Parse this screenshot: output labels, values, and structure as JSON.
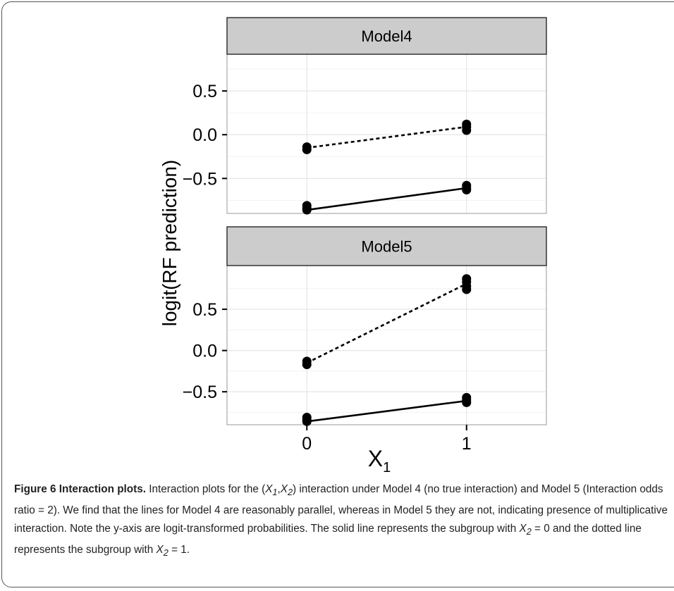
{
  "chart_data": {
    "type": "line",
    "ylabel": "logit(RF prediction)",
    "xlabel": "X",
    "xlabel_subscript": "1",
    "x_ticks": [
      "0",
      "1"
    ],
    "y_ticks": [
      "0.5",
      "0.0",
      "−0.5"
    ],
    "y_tick_values": [
      0.5,
      0.0,
      -0.5
    ],
    "xlim": [
      -0.5,
      1.5
    ],
    "grid": true,
    "panels": [
      {
        "title": "Model4",
        "ylim": [
          -0.9,
          0.92
        ],
        "series": [
          {
            "style": "dotted",
            "x": [
              0,
              1
            ],
            "y": [
              -0.15,
              0.09
            ],
            "points": [
              [
                0,
                -0.14
              ],
              [
                0,
                -0.17
              ],
              [
                1,
                0.12
              ],
              [
                1,
                0.09
              ],
              [
                1,
                0.05
              ]
            ]
          },
          {
            "style": "solid",
            "x": [
              0,
              1
            ],
            "y": [
              -0.86,
              -0.61
            ],
            "points": [
              [
                0,
                -0.81
              ],
              [
                0,
                -0.84
              ],
              [
                0,
                -0.86
              ],
              [
                1,
                -0.58
              ],
              [
                1,
                -0.61
              ],
              [
                1,
                -0.63
              ]
            ]
          }
        ]
      },
      {
        "title": "Model5",
        "ylim": [
          -0.9,
          1.03
        ],
        "series": [
          {
            "style": "dotted",
            "x": [
              0,
              1
            ],
            "y": [
              -0.15,
              0.81
            ],
            "points": [
              [
                0,
                -0.13
              ],
              [
                0,
                -0.17
              ],
              [
                1,
                0.87
              ],
              [
                1,
                0.83
              ],
              [
                1,
                0.78
              ],
              [
                1,
                0.74
              ]
            ]
          },
          {
            "style": "solid",
            "x": [
              0,
              1
            ],
            "y": [
              -0.86,
              -0.61
            ],
            "points": [
              [
                0,
                -0.81
              ],
              [
                0,
                -0.84
              ],
              [
                0,
                -0.86
              ],
              [
                1,
                -0.57
              ],
              [
                1,
                -0.6
              ],
              [
                1,
                -0.63
              ]
            ]
          }
        ]
      }
    ]
  },
  "caption": {
    "label": "Figure 6 Interaction plots.",
    "t1": " Interaction plots for the (",
    "x1": "X",
    "x1_sub": "1",
    "comma": ",",
    "x2": "X",
    "x2_sub": "2",
    "t2": ") interaction under Model 4 (no true interaction) and Model 5 (Interaction odds ratio = 2). We find that the lines for Model 4 are reasonably parallel, whereas in Model 5 they are not, indicating presence of multiplicative interaction. Note the y-axis are logit-transformed probabilities. The solid line represents the subgroup with ",
    "x3": "X",
    "x3_sub": "2",
    "t3": " = 0 and the dotted line represents the subgroup with ",
    "x4": "X",
    "x4_sub": "2",
    "t4": " = 1."
  }
}
